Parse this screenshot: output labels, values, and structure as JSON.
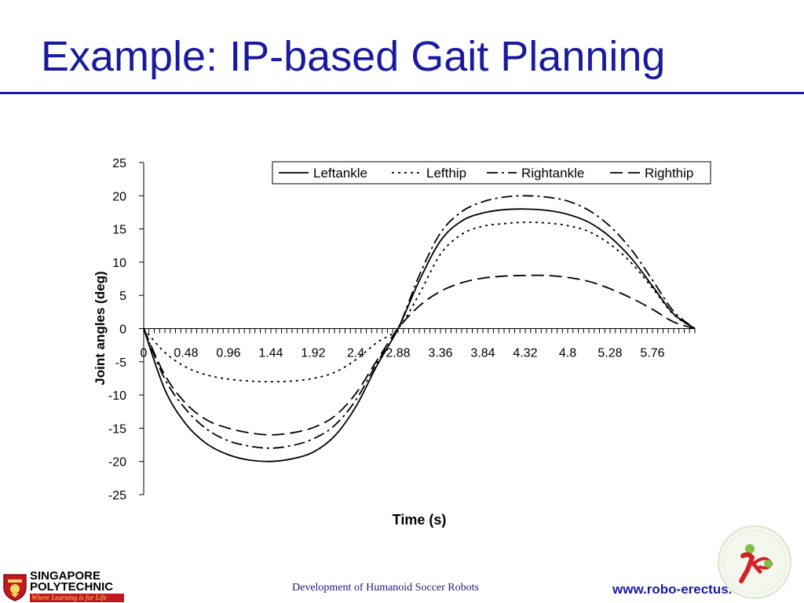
{
  "slide": {
    "title": "Example: IP-based Gait Planning",
    "footer": "Development of Humanoid Soccer Robots",
    "url": "www.robo-erectus.org"
  },
  "logos": {
    "institution_line1": "SINGAPORE",
    "institution_line2": "POLYTECHNIC",
    "institution_tagline": "Where Learning is for Life",
    "crest_icon": "shield-crest-icon",
    "team_icon": "robo-erectus-logo-icon"
  },
  "colors": {
    "title": "#1a1aa0",
    "rule": "#1a1aa0",
    "series": "#000000",
    "tagline_bg": "#c0191f",
    "tagline_text": "#f4d35e",
    "team_logo_green": "#7cc242",
    "team_logo_red": "#d62027"
  },
  "chart_data": {
    "type": "line",
    "title": "",
    "xlabel": "Time (s)",
    "ylabel": "Joint angles (deg)",
    "ylim": [
      -25,
      25
    ],
    "xlim": [
      0,
      6.24
    ],
    "yticks": [
      25,
      20,
      15,
      10,
      5,
      0,
      -5,
      -10,
      -15,
      -20,
      -25
    ],
    "xtick_labels": [
      "0",
      "0.48",
      "0.96",
      "1.44",
      "1.92",
      "2.4",
      "2.88",
      "3.36",
      "3.84",
      "4.32",
      "4.8",
      "5.28",
      "5.76"
    ],
    "xtick_values": [
      0,
      0.48,
      0.96,
      1.44,
      1.92,
      2.4,
      2.88,
      3.36,
      3.84,
      4.32,
      4.8,
      5.28,
      5.76
    ],
    "minor_tick_step": 0.06,
    "grid": false,
    "legend_position": "top-right",
    "x": [
      0,
      0.24,
      0.48,
      0.72,
      0.96,
      1.2,
      1.44,
      1.68,
      1.92,
      2.16,
      2.4,
      2.64,
      2.88,
      3.12,
      3.36,
      3.6,
      3.84,
      4.08,
      4.32,
      4.56,
      4.8,
      5.04,
      5.28,
      5.52,
      5.76,
      6.0,
      6.24
    ],
    "series": [
      {
        "name": "Leftankle",
        "dash": "solid",
        "values": [
          0,
          -9.2,
          -14.4,
          -17.4,
          -19.0,
          -19.8,
          -20.0,
          -19.6,
          -18.6,
          -16.2,
          -11.8,
          -5.6,
          0,
          7.2,
          13.2,
          16.2,
          17.4,
          17.9,
          18.0,
          17.8,
          17.2,
          16.0,
          13.8,
          10.6,
          6.4,
          2.2,
          0
        ]
      },
      {
        "name": "Lefthip",
        "dash": "dotted",
        "values": [
          0,
          -3.6,
          -5.8,
          -7.0,
          -7.6,
          -7.9,
          -8.0,
          -7.9,
          -7.5,
          -6.6,
          -4.7,
          -2.1,
          0,
          5.2,
          11.2,
          14.2,
          15.4,
          15.8,
          16.0,
          15.9,
          15.5,
          14.6,
          12.7,
          9.9,
          6.1,
          2.1,
          0
        ]
      },
      {
        "name": "Rightankle",
        "dash": "dash-dot",
        "values": [
          0,
          -7.6,
          -12.2,
          -15.2,
          -16.9,
          -17.7,
          -18.0,
          -17.6,
          -16.6,
          -14.6,
          -10.8,
          -5.2,
          0,
          8.0,
          14.4,
          17.6,
          19.1,
          19.8,
          20.0,
          19.8,
          19.2,
          17.8,
          15.4,
          11.9,
          7.3,
          2.6,
          0
        ]
      },
      {
        "name": "Righthip",
        "dash": "long-dash",
        "values": [
          0,
          -7.0,
          -11.3,
          -13.8,
          -15.0,
          -15.7,
          -16.0,
          -15.7,
          -14.9,
          -13.2,
          -9.8,
          -4.8,
          0,
          3.4,
          5.6,
          6.9,
          7.6,
          7.9,
          8.0,
          8.0,
          7.7,
          7.1,
          6.0,
          4.6,
          2.9,
          1.0,
          0
        ]
      }
    ]
  }
}
